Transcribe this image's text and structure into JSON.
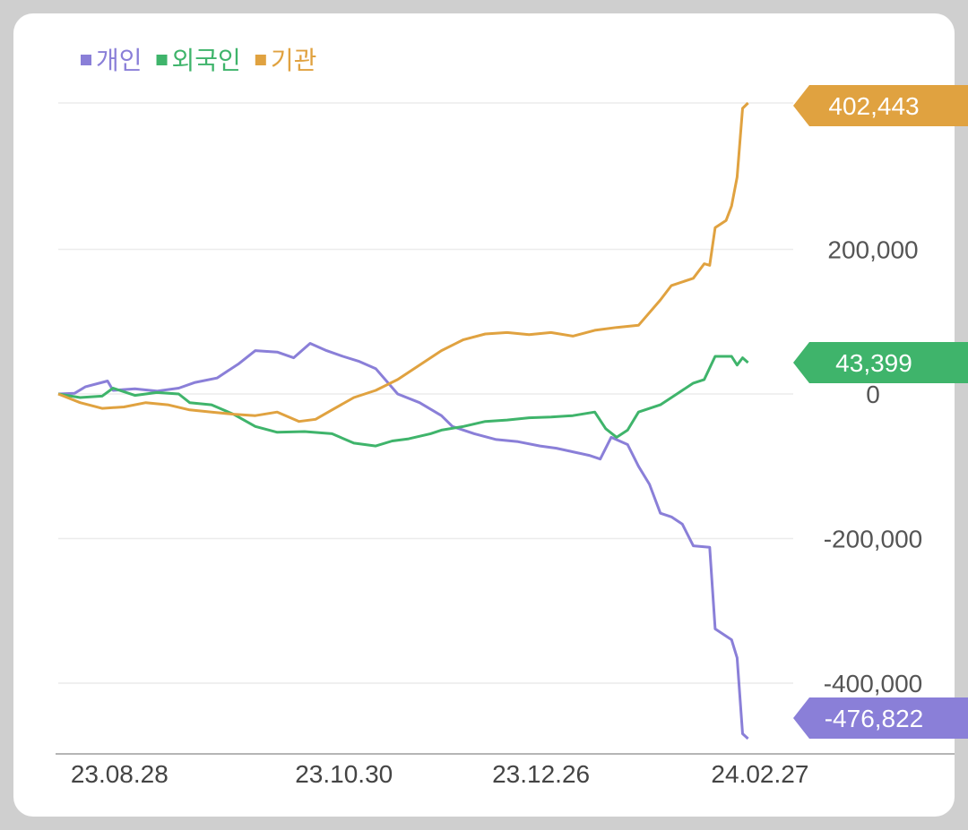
{
  "chart_data": {
    "type": "line",
    "legend": [
      {
        "name": "개인",
        "color": "#8a7fd8"
      },
      {
        "name": "외국인",
        "color": "#3fb46b"
      },
      {
        "name": "기관",
        "color": "#e0a240"
      }
    ],
    "legend_position": "top-left",
    "grid": true,
    "ylim": [
      -500000,
      402443
    ],
    "yticks": [
      {
        "value": 200000,
        "label": "200,000"
      },
      {
        "value": 0,
        "label": "0"
      },
      {
        "value": -200000,
        "label": "-200,000"
      },
      {
        "value": -400000,
        "label": "-400,000"
      }
    ],
    "xticks": [
      {
        "x": 3,
        "label": "23.08.28"
      },
      {
        "x": 44,
        "label": "23.10.30"
      },
      {
        "x": 80,
        "label": "23.12.26"
      },
      {
        "x": 120,
        "label": "24.02.27"
      }
    ],
    "x_range": [
      0,
      130
    ],
    "series": [
      {
        "name": "개인",
        "color": "#8a7fd8",
        "last_label": "-476,822",
        "points": [
          [
            0,
            0
          ],
          [
            3,
            1000
          ],
          [
            5,
            10000
          ],
          [
            9,
            18000
          ],
          [
            10,
            5000
          ],
          [
            14,
            7000
          ],
          [
            18,
            4000
          ],
          [
            22,
            8000
          ],
          [
            25,
            16000
          ],
          [
            29,
            22000
          ],
          [
            33,
            42000
          ],
          [
            36,
            60000
          ],
          [
            40,
            58000
          ],
          [
            43,
            50000
          ],
          [
            46,
            70000
          ],
          [
            49,
            60000
          ],
          [
            52,
            52000
          ],
          [
            55,
            45000
          ],
          [
            58,
            35000
          ],
          [
            62,
            0
          ],
          [
            66,
            -12000
          ],
          [
            70,
            -30000
          ],
          [
            72,
            -45000
          ],
          [
            76,
            -55000
          ],
          [
            80,
            -63000
          ],
          [
            84,
            -66000
          ],
          [
            88,
            -72000
          ],
          [
            91,
            -75000
          ],
          [
            94,
            -80000
          ],
          [
            97,
            -85000
          ],
          [
            99,
            -90000
          ],
          [
            101,
            -60000
          ],
          [
            104,
            -70000
          ],
          [
            106,
            -100000
          ],
          [
            108,
            -125000
          ],
          [
            110,
            -165000
          ],
          [
            112,
            -170000
          ],
          [
            114,
            -180000
          ],
          [
            116,
            -210000
          ],
          [
            119,
            -212000
          ],
          [
            120,
            -325000
          ],
          [
            123,
            -340000
          ],
          [
            124,
            -365000
          ],
          [
            125,
            -470000
          ],
          [
            126,
            -476822
          ]
        ]
      },
      {
        "name": "외국인",
        "color": "#3fb46b",
        "last_label": "43,399",
        "points": [
          [
            0,
            0
          ],
          [
            4,
            -5000
          ],
          [
            8,
            -3000
          ],
          [
            10,
            8000
          ],
          [
            14,
            -2000
          ],
          [
            18,
            2000
          ],
          [
            22,
            0
          ],
          [
            24,
            -12000
          ],
          [
            28,
            -15000
          ],
          [
            32,
            -28000
          ],
          [
            36,
            -45000
          ],
          [
            40,
            -53000
          ],
          [
            45,
            -52000
          ],
          [
            50,
            -55000
          ],
          [
            54,
            -68000
          ],
          [
            58,
            -72000
          ],
          [
            61,
            -65000
          ],
          [
            64,
            -62000
          ],
          [
            68,
            -55000
          ],
          [
            70,
            -50000
          ],
          [
            74,
            -45000
          ],
          [
            78,
            -38000
          ],
          [
            82,
            -36000
          ],
          [
            86,
            -33000
          ],
          [
            90,
            -32000
          ],
          [
            94,
            -30000
          ],
          [
            98,
            -25000
          ],
          [
            100,
            -48000
          ],
          [
            102,
            -60000
          ],
          [
            104,
            -50000
          ],
          [
            106,
            -25000
          ],
          [
            110,
            -15000
          ],
          [
            113,
            0
          ],
          [
            116,
            15000
          ],
          [
            118,
            20000
          ],
          [
            120,
            52000
          ],
          [
            123,
            52000
          ],
          [
            124,
            40000
          ],
          [
            125,
            50000
          ],
          [
            126,
            43399
          ]
        ]
      },
      {
        "name": "기관",
        "color": "#e0a240",
        "last_label": "402,443",
        "points": [
          [
            0,
            0
          ],
          [
            4,
            -12000
          ],
          [
            8,
            -20000
          ],
          [
            12,
            -18000
          ],
          [
            16,
            -12000
          ],
          [
            20,
            -15000
          ],
          [
            24,
            -22000
          ],
          [
            28,
            -25000
          ],
          [
            32,
            -28000
          ],
          [
            36,
            -30000
          ],
          [
            40,
            -25000
          ],
          [
            44,
            -38000
          ],
          [
            47,
            -35000
          ],
          [
            50,
            -22000
          ],
          [
            54,
            -5000
          ],
          [
            58,
            5000
          ],
          [
            62,
            20000
          ],
          [
            66,
            40000
          ],
          [
            70,
            60000
          ],
          [
            74,
            75000
          ],
          [
            78,
            83000
          ],
          [
            82,
            85000
          ],
          [
            86,
            82000
          ],
          [
            90,
            85000
          ],
          [
            94,
            80000
          ],
          [
            98,
            88000
          ],
          [
            102,
            92000
          ],
          [
            106,
            95000
          ],
          [
            110,
            130000
          ],
          [
            112,
            150000
          ],
          [
            116,
            160000
          ],
          [
            118,
            180000
          ],
          [
            119,
            178000
          ],
          [
            120,
            230000
          ],
          [
            122,
            240000
          ],
          [
            123,
            260000
          ],
          [
            124,
            300000
          ],
          [
            125,
            395000
          ],
          [
            126,
            402443
          ]
        ]
      }
    ]
  }
}
